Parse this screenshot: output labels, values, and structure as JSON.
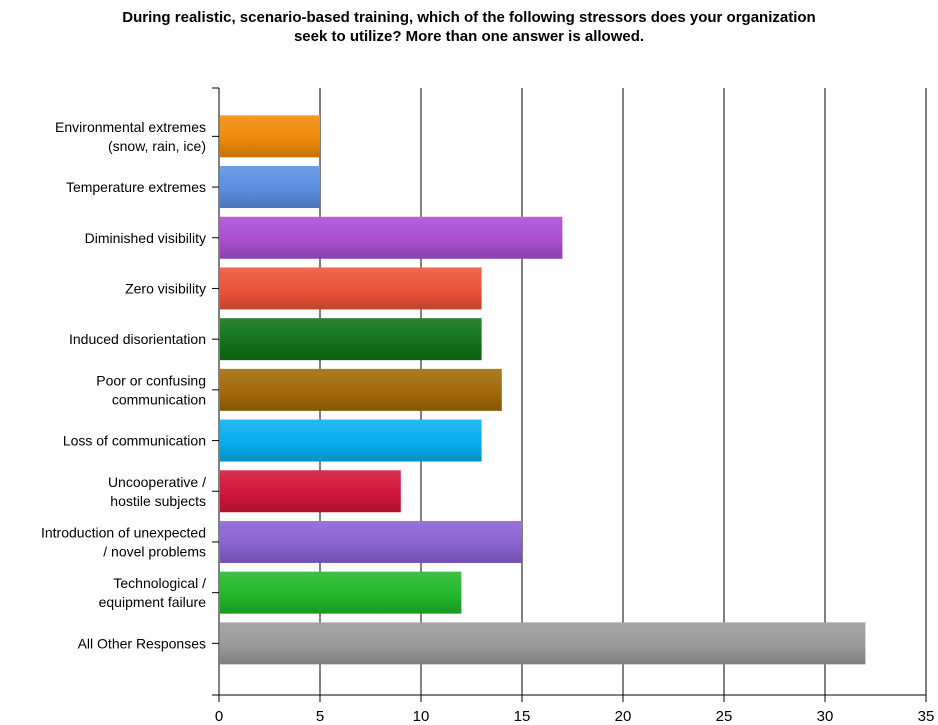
{
  "chart_data": {
    "type": "bar",
    "orientation": "horizontal",
    "title_lines": [
      "During realistic, scenario-based training, which of the following stressors does your organization",
      "seek to utilize? More than one answer is allowed."
    ],
    "xlabel": "",
    "ylabel": "",
    "xlim": [
      0,
      35
    ],
    "xticks": [
      0,
      5,
      10,
      15,
      20,
      25,
      30,
      35
    ],
    "grid": true,
    "legend": "none",
    "categories": [
      {
        "label": [
          "Environmental extremes",
          "(snow, rain, ice)"
        ],
        "value": 5,
        "color": "#f08a0c"
      },
      {
        "label": [
          "Temperature extremes"
        ],
        "value": 5,
        "color": "#5b8ee0"
      },
      {
        "label": [
          "Diminished visibility"
        ],
        "value": 17,
        "color": "#a94ed0"
      },
      {
        "label": [
          "Zero visibility"
        ],
        "value": 13,
        "color": "#ea5337"
      },
      {
        "label": [
          "Induced disorientation"
        ],
        "value": 13,
        "color": "#13731b"
      },
      {
        "label": [
          "Poor or confusing",
          "communication"
        ],
        "value": 14,
        "color": "#a16a07"
      },
      {
        "label": [
          "Loss of communication"
        ],
        "value": 13,
        "color": "#07aef0"
      },
      {
        "label": [
          "Uncooperative /",
          "hostile subjects"
        ],
        "value": 9,
        "color": "#d21638"
      },
      {
        "label": [
          "Introduction of unexpected",
          "/ novel problems"
        ],
        "value": 15,
        "color": "#8a62d2"
      },
      {
        "label": [
          "Technological /",
          "equipment failure"
        ],
        "value": 12,
        "color": "#22b82a"
      },
      {
        "label": [
          "All Other Responses"
        ],
        "value": 32,
        "color": "#9a9a9a"
      }
    ]
  }
}
